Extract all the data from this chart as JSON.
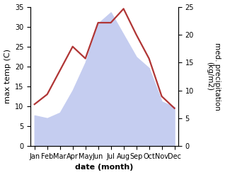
{
  "months": [
    "Jan",
    "Feb",
    "Mar",
    "Apr",
    "May",
    "Jun",
    "Jul",
    "Aug",
    "Sep",
    "Oct",
    "Nov",
    "Dec"
  ],
  "temperature": [
    10.5,
    13.0,
    19.0,
    25.0,
    22.0,
    31.0,
    31.0,
    34.5,
    28.0,
    22.0,
    12.5,
    9.5
  ],
  "precipitation": [
    5.5,
    5.0,
    6.0,
    10.0,
    15.0,
    22.0,
    24.0,
    20.0,
    16.0,
    14.0,
    8.0,
    7.0
  ],
  "temp_color": "#b03535",
  "precip_fill_color": "#c5cdf0",
  "precip_edge_color": "#b0b8e8",
  "temp_ylim": [
    0,
    35
  ],
  "precip_ylim": [
    0,
    25
  ],
  "temp_yticks": [
    0,
    5,
    10,
    15,
    20,
    25,
    30,
    35
  ],
  "precip_yticks": [
    0,
    5,
    10,
    15,
    20,
    25
  ],
  "xlabel": "date (month)",
  "ylabel_left": "max temp (C)",
  "ylabel_right": "med. precipitation\n(kg/m2)",
  "bg_color": "#ffffff",
  "label_fontsize": 8,
  "tick_fontsize": 7
}
